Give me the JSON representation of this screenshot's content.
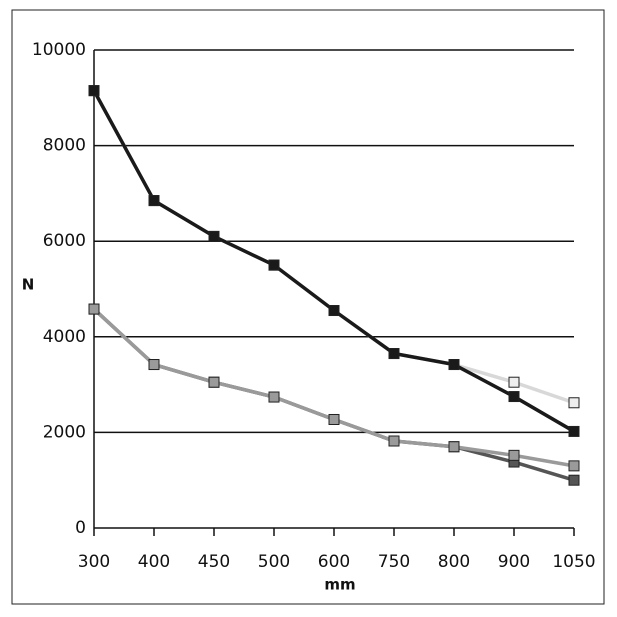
{
  "chart_data": {
    "type": "line",
    "x_label": "mm",
    "y_label": "N",
    "categories": [
      "300",
      "400",
      "450",
      "500",
      "600",
      "750",
      "800",
      "900",
      "1050"
    ],
    "series": [
      {
        "color": "#d8d8d8",
        "marker_fill": "#eeeeee",
        "values": [
          9150,
          6850,
          6100,
          5500,
          4550,
          3650,
          3420,
          3050,
          2620
        ]
      },
      {
        "color": "#1a1a1a",
        "marker_fill": "#1a1a1a",
        "values": [
          9150,
          6850,
          6100,
          5500,
          4550,
          3650,
          3420,
          2750,
          2020
        ]
      },
      {
        "color": "#555555",
        "marker_fill": "#555555",
        "values": [
          4580,
          3420,
          3050,
          2740,
          2270,
          1820,
          1700,
          1380,
          1000
        ]
      },
      {
        "color": "#9a9a9a",
        "marker_fill": "#9a9a9a",
        "values": [
          4580,
          3420,
          3050,
          2740,
          2270,
          1820,
          1700,
          1520,
          1300
        ]
      }
    ],
    "ylim": [
      0,
      10000
    ],
    "yticks": [
      0,
      2000,
      4000,
      6000,
      8000,
      10000
    ],
    "grid": true
  }
}
